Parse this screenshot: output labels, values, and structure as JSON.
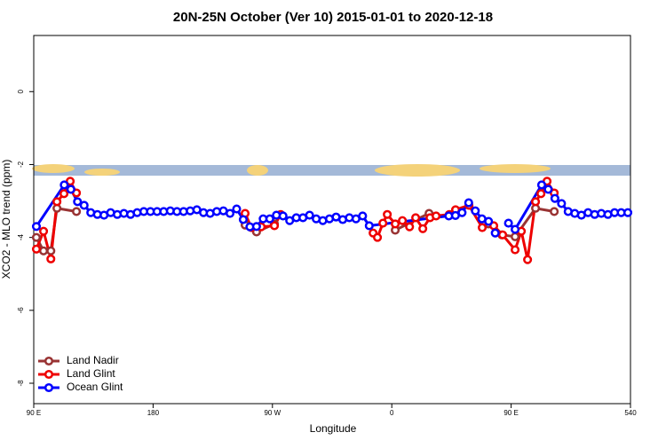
{
  "chart_data": {
    "type": "line",
    "title": "20N-25N October (Ver 10)   2015-01-01 to 2020-12-18",
    "x_label": "Longitude",
    "y_label": "XCO2 - MLO trend (ppm)",
    "xlim": [
      90,
      540
    ],
    "xticks": [
      {
        "value": 90,
        "label": "90 E"
      },
      180,
      {
        "value": 270,
        "label": "90 W"
      },
      {
        "value": 360,
        "label": "0"
      },
      {
        "value": 450,
        "label": "90 E"
      },
      540
    ],
    "ylim": [
      -8.56,
      1.54
    ],
    "yticks": [
      0,
      -2,
      -4,
      -6,
      -8
    ],
    "legend": "bottom-left",
    "series": [
      {
        "name": "Land Nadir",
        "color": "#993333",
        "x": [
          92,
          97.4,
          102.9,
          107.5,
          122.2,
          185,
          249.4,
          258,
          271.5,
          310,
          362.6,
          388.1,
          420,
          433,
          443,
          453,
          468.4,
          482.5
        ],
        "values": [
          -4.0,
          -4.37,
          -4.37,
          -3.2,
          -3.29,
          null,
          -3.66,
          -3.85,
          -3.63,
          null,
          -3.8,
          -3.34,
          null,
          -3.63,
          -3.93,
          -3.98,
          -3.2,
          -3.29
        ]
      },
      {
        "name": "Land Glint",
        "color": "#ee0000",
        "x": [
          92,
          97.4,
          102.9,
          107.5,
          112.8,
          117.5,
          122.2,
          185,
          249.4,
          254.1,
          261.5,
          271.5,
          276.2,
          310,
          345.9,
          349.2,
          353.3,
          356.6,
          362.6,
          368,
          373.4,
          378,
          383.4,
          388.8,
          393.4,
          403.4,
          408.1,
          418.2,
          428.2,
          436.9,
          443.6,
          453,
          457.7,
          462.4,
          468.4,
          472.5,
          477.1,
          482.5
        ],
        "values": [
          -4.32,
          -3.83,
          -4.59,
          -3.02,
          -2.8,
          -2.46,
          -2.78,
          null,
          -3.34,
          -3.73,
          -3.71,
          -3.68,
          -3.37,
          null,
          -3.88,
          -4.0,
          -3.61,
          -3.37,
          -3.63,
          -3.54,
          -3.71,
          -3.46,
          -3.76,
          -3.46,
          -3.41,
          -3.37,
          -3.24,
          -3.12,
          -3.73,
          -3.68,
          -3.93,
          -4.34,
          -3.83,
          -4.61,
          -3.02,
          -2.8,
          -2.46,
          -2.78
        ]
      },
      {
        "name": "Ocean Glint",
        "color": "#0000ff",
        "x": [
          92,
          113,
          118,
          123,
          128,
          133,
          138,
          143,
          148,
          153,
          158,
          163,
          168,
          173,
          178,
          183,
          188,
          193,
          198,
          203,
          208,
          213,
          218,
          223,
          228,
          233,
          238,
          243,
          248,
          253,
          258,
          263,
          268,
          273,
          278,
          283,
          288,
          293,
          298,
          303,
          308,
          313,
          318,
          323,
          328,
          333,
          338,
          343,
          403,
          408,
          413,
          418,
          423,
          428,
          433,
          438,
          443,
          448,
          453,
          473,
          478,
          483,
          488,
          493,
          498,
          503,
          508,
          513,
          518,
          523,
          528,
          533,
          538
        ],
        "values": [
          -3.7,
          -2.56,
          -2.68,
          -3.02,
          -3.12,
          -3.32,
          -3.37,
          -3.39,
          -3.32,
          -3.37,
          -3.34,
          -3.37,
          -3.32,
          -3.29,
          -3.29,
          -3.29,
          -3.29,
          -3.27,
          -3.29,
          -3.29,
          -3.27,
          -3.24,
          -3.32,
          -3.34,
          -3.29,
          -3.27,
          -3.34,
          -3.22,
          -3.51,
          -3.71,
          -3.7,
          -3.49,
          -3.49,
          -3.39,
          -3.41,
          -3.54,
          -3.46,
          -3.46,
          -3.39,
          -3.49,
          -3.54,
          -3.49,
          -3.44,
          -3.51,
          -3.46,
          -3.49,
          -3.41,
          -3.68,
          -3.41,
          -3.4,
          -3.32,
          -3.05,
          -3.27,
          -3.49,
          -3.56,
          -3.88,
          null,
          -3.61,
          -3.78,
          -2.56,
          -2.68,
          -2.93,
          -3.07,
          -3.29,
          -3.34,
          -3.39,
          -3.32,
          -3.37,
          -3.34,
          -3.37,
          -3.32,
          -3.32,
          -3.32
        ]
      }
    ]
  }
}
